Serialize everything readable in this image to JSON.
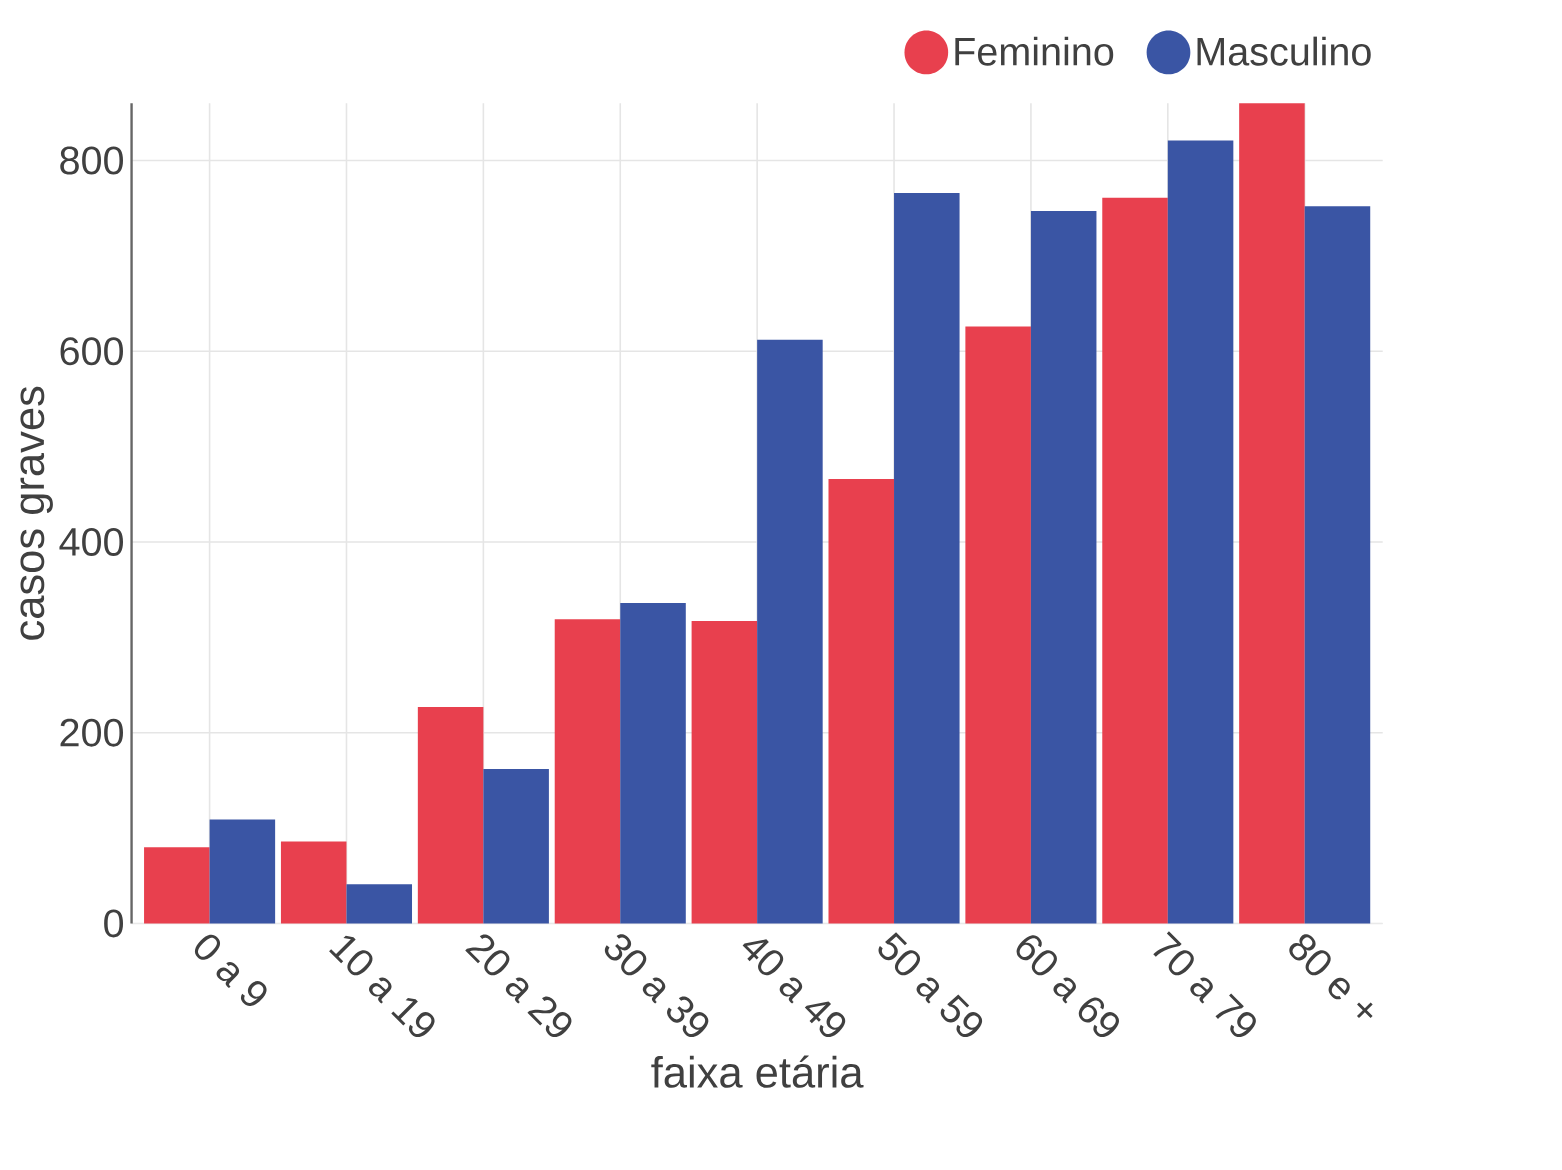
{
  "chart_data": {
    "type": "bar",
    "xlabel": "faixa etária",
    "ylabel": "casos graves",
    "categories": [
      "0 a 9",
      "10 a 19",
      "20 a 29",
      "30 a 39",
      "40 a 49",
      "50 a 59",
      "60 a 69",
      "70 a 79",
      "80 e +"
    ],
    "series": [
      {
        "name": "Feminino",
        "color": "#e8404e",
        "values": [
          80,
          86,
          227,
          319,
          317,
          466,
          626,
          761,
          860
        ]
      },
      {
        "name": "Masculino",
        "color": "#3a55a4",
        "values": [
          109,
          41,
          162,
          336,
          612,
          766,
          747,
          821,
          752
        ]
      }
    ],
    "ylim": [
      0,
      860
    ],
    "yticks": [
      0,
      200,
      400,
      600,
      800
    ],
    "grid": true,
    "legend": "top right"
  }
}
